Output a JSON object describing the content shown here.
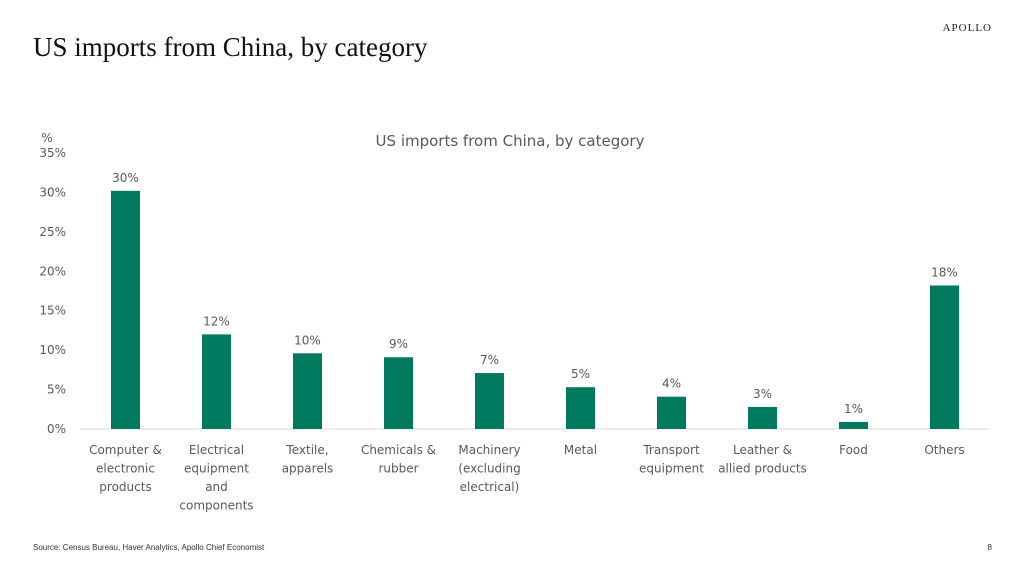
{
  "slide": {
    "title": "US imports from China, by category",
    "logo": "APOLLO",
    "source": "Source: Census Bureau, Haver Analytics, Apollo Chief Economist",
    "page_number": "8"
  },
  "colors": {
    "bar": "#007A5E",
    "axis_text": "#595959",
    "axis_line": "#D9D9D9"
  },
  "chart_data": {
    "type": "bar",
    "title": "US imports from China, by category",
    "ylabel": "%",
    "ylim": [
      0,
      35
    ],
    "yticks": [
      0,
      5,
      10,
      15,
      20,
      25,
      30,
      35
    ],
    "ytick_labels": [
      "0%",
      "5%",
      "10%",
      "15%",
      "20%",
      "25%",
      "30%",
      "35%"
    ],
    "grid": false,
    "categories": [
      [
        "Computer &",
        "electronic",
        "products"
      ],
      [
        "Electrical",
        "equipment",
        "and",
        "components"
      ],
      [
        "Textile,",
        "apparels"
      ],
      [
        "Chemicals &",
        "rubber"
      ],
      [
        "Machinery",
        "(excluding",
        "electrical)"
      ],
      [
        "Metal"
      ],
      [
        "Transport",
        "equipment"
      ],
      [
        "Leather &",
        "allied products"
      ],
      [
        "Food"
      ],
      [
        "Others"
      ]
    ],
    "values": [
      30.2,
      12.0,
      9.6,
      9.1,
      7.1,
      5.3,
      4.1,
      2.8,
      0.9,
      18.2
    ],
    "data_labels": [
      "30%",
      "12%",
      "10%",
      "9%",
      "7%",
      "5%",
      "4%",
      "3%",
      "1%",
      "18%"
    ]
  }
}
